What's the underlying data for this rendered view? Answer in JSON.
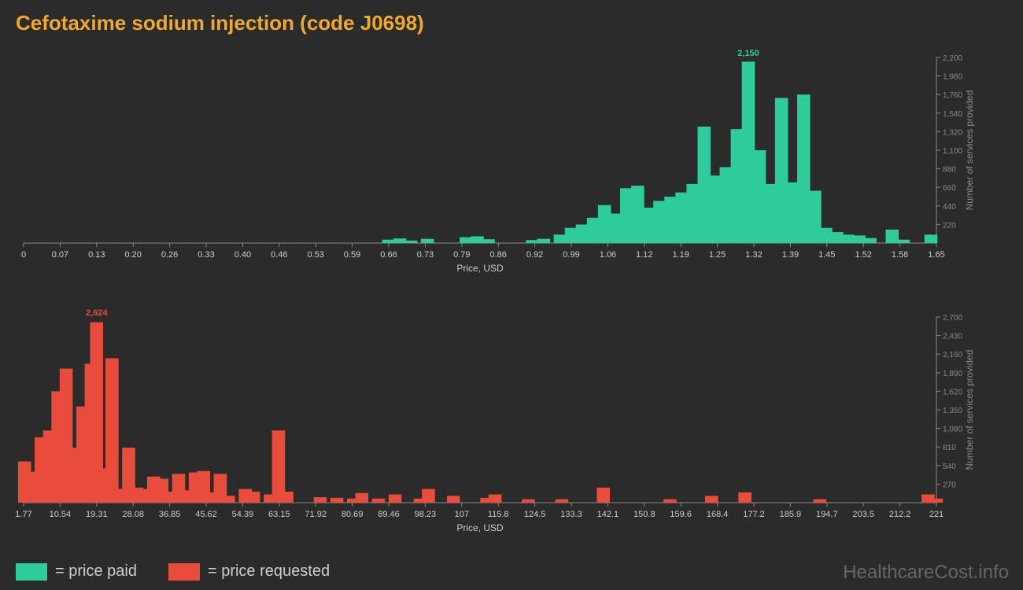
{
  "title": "Cefotaxime sodium injection (code J0698)",
  "watermark": "HealthcareCost.info",
  "legend": {
    "paid": {
      "label": "= price paid",
      "color": "#2ecc9a"
    },
    "requested": {
      "label": "= price requested",
      "color": "#e74c3c"
    }
  },
  "chart1": {
    "type": "bar",
    "bar_color": "#2ecc9a",
    "xlabel": "Price, USD",
    "ylabel": "Number of services provided",
    "xmin": 0,
    "xmax": 1.65,
    "ymin": 0,
    "ymax": 2200,
    "peak_value": "2,150",
    "peak_x": 1.31,
    "xticks": [
      "0",
      "0.07",
      "0.13",
      "0.20",
      "0.26",
      "0.33",
      "0.40",
      "0.46",
      "0.53",
      "0.59",
      "0.66",
      "0.73",
      "0.79",
      "0.86",
      "0.92",
      "0.99",
      "1.06",
      "1.12",
      "1.19",
      "1.25",
      "1.32",
      "1.39",
      "1.45",
      "1.52",
      "1.58",
      "1.65"
    ],
    "yticks": [
      "220",
      "440",
      "660",
      "880",
      "1,100",
      "1,320",
      "1,540",
      "1,760",
      "1,980",
      "2,200"
    ],
    "bars": [
      {
        "x": 0.66,
        "v": 40
      },
      {
        "x": 0.68,
        "v": 55
      },
      {
        "x": 0.7,
        "v": 30
      },
      {
        "x": 0.73,
        "v": 50
      },
      {
        "x": 0.8,
        "v": 70
      },
      {
        "x": 0.82,
        "v": 80
      },
      {
        "x": 0.84,
        "v": 45
      },
      {
        "x": 0.92,
        "v": 35
      },
      {
        "x": 0.94,
        "v": 50
      },
      {
        "x": 0.97,
        "v": 100
      },
      {
        "x": 0.99,
        "v": 180
      },
      {
        "x": 1.01,
        "v": 220
      },
      {
        "x": 1.03,
        "v": 300
      },
      {
        "x": 1.05,
        "v": 450
      },
      {
        "x": 1.07,
        "v": 350
      },
      {
        "x": 1.09,
        "v": 650
      },
      {
        "x": 1.11,
        "v": 680
      },
      {
        "x": 1.13,
        "v": 420
      },
      {
        "x": 1.15,
        "v": 500
      },
      {
        "x": 1.17,
        "v": 550
      },
      {
        "x": 1.19,
        "v": 600
      },
      {
        "x": 1.21,
        "v": 700
      },
      {
        "x": 1.23,
        "v": 1380
      },
      {
        "x": 1.25,
        "v": 800
      },
      {
        "x": 1.27,
        "v": 900
      },
      {
        "x": 1.29,
        "v": 1350
      },
      {
        "x": 1.31,
        "v": 2150
      },
      {
        "x": 1.33,
        "v": 1100
      },
      {
        "x": 1.35,
        "v": 700
      },
      {
        "x": 1.37,
        "v": 1720
      },
      {
        "x": 1.39,
        "v": 720
      },
      {
        "x": 1.41,
        "v": 1760
      },
      {
        "x": 1.43,
        "v": 620
      },
      {
        "x": 1.45,
        "v": 180
      },
      {
        "x": 1.47,
        "v": 130
      },
      {
        "x": 1.49,
        "v": 100
      },
      {
        "x": 1.51,
        "v": 90
      },
      {
        "x": 1.53,
        "v": 60
      },
      {
        "x": 1.57,
        "v": 160
      },
      {
        "x": 1.59,
        "v": 40
      },
      {
        "x": 1.64,
        "v": 100
      }
    ]
  },
  "chart2": {
    "type": "bar",
    "bar_color": "#e74c3c",
    "xlabel": "Price, USD",
    "ylabel": "Number of services provided",
    "xmin": 1.77,
    "xmax": 221,
    "ymin": 0,
    "ymax": 2700,
    "peak_value": "2,624",
    "peak_x": 19.31,
    "xticks": [
      "1.77",
      "10.54",
      "19.31",
      "28.08",
      "36.85",
      "45.62",
      "54.39",
      "63.15",
      "71.92",
      "80.69",
      "89.46",
      "98.23",
      "107",
      "115.8",
      "124.5",
      "133.3",
      "142.1",
      "150.8",
      "159.6",
      "168.4",
      "177.2",
      "185.9",
      "194.7",
      "203.5",
      "212.2",
      "221"
    ],
    "yticks": [
      "270",
      "540",
      "810",
      "1,080",
      "1,350",
      "1,620",
      "1,890",
      "2,160",
      "2,430",
      "2,700"
    ],
    "bars": [
      {
        "x": 2,
        "v": 600
      },
      {
        "x": 4,
        "v": 450
      },
      {
        "x": 6,
        "v": 950
      },
      {
        "x": 8,
        "v": 1050
      },
      {
        "x": 10,
        "v": 1620
      },
      {
        "x": 12,
        "v": 1950
      },
      {
        "x": 14,
        "v": 800
      },
      {
        "x": 16,
        "v": 1400
      },
      {
        "x": 18,
        "v": 2020
      },
      {
        "x": 19.3,
        "v": 2624
      },
      {
        "x": 21,
        "v": 500
      },
      {
        "x": 23,
        "v": 2100
      },
      {
        "x": 25,
        "v": 200
      },
      {
        "x": 27,
        "v": 800
      },
      {
        "x": 29,
        "v": 220
      },
      {
        "x": 31,
        "v": 200
      },
      {
        "x": 33,
        "v": 380
      },
      {
        "x": 35,
        "v": 350
      },
      {
        "x": 37,
        "v": 160
      },
      {
        "x": 39,
        "v": 420
      },
      {
        "x": 41,
        "v": 180
      },
      {
        "x": 43,
        "v": 440
      },
      {
        "x": 45,
        "v": 460
      },
      {
        "x": 47,
        "v": 150
      },
      {
        "x": 49,
        "v": 420
      },
      {
        "x": 51,
        "v": 100
      },
      {
        "x": 55,
        "v": 200
      },
      {
        "x": 57,
        "v": 160
      },
      {
        "x": 61,
        "v": 120
      },
      {
        "x": 63,
        "v": 1050
      },
      {
        "x": 65,
        "v": 160
      },
      {
        "x": 73,
        "v": 80
      },
      {
        "x": 77,
        "v": 70
      },
      {
        "x": 81,
        "v": 60
      },
      {
        "x": 83,
        "v": 140
      },
      {
        "x": 87,
        "v": 60
      },
      {
        "x": 91,
        "v": 120
      },
      {
        "x": 97,
        "v": 60
      },
      {
        "x": 99,
        "v": 200
      },
      {
        "x": 105,
        "v": 100
      },
      {
        "x": 113,
        "v": 70
      },
      {
        "x": 115,
        "v": 120
      },
      {
        "x": 123,
        "v": 50
      },
      {
        "x": 131,
        "v": 50
      },
      {
        "x": 141,
        "v": 220
      },
      {
        "x": 157,
        "v": 50
      },
      {
        "x": 167,
        "v": 100
      },
      {
        "x": 175,
        "v": 150
      },
      {
        "x": 193,
        "v": 50
      },
      {
        "x": 219,
        "v": 120
      },
      {
        "x": 221,
        "v": 60
      }
    ]
  }
}
